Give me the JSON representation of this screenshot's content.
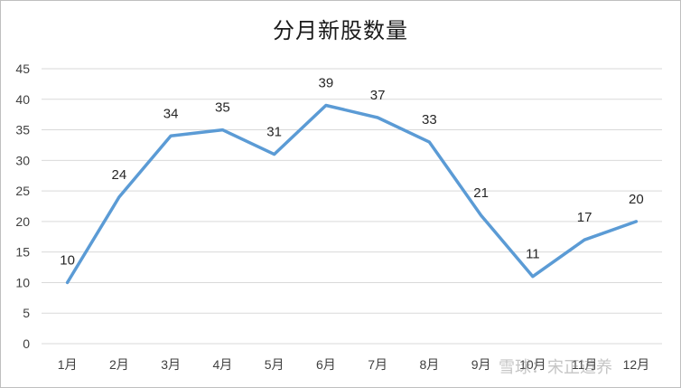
{
  "chart_data": {
    "type": "line",
    "title": "分月新股数量",
    "categories": [
      "1月",
      "2月",
      "3月",
      "4月",
      "5月",
      "6月",
      "7月",
      "8月",
      "9月",
      "10月",
      "11月",
      "12月"
    ],
    "series": [
      {
        "values": [
          10,
          24,
          34,
          35,
          31,
          39,
          37,
          33,
          21,
          11,
          17,
          20
        ]
      }
    ],
    "ylim": [
      0,
      45
    ],
    "yticks": [
      0,
      5,
      10,
      15,
      20,
      25,
      30,
      35,
      40,
      45
    ],
    "grid": true,
    "data_labels": true,
    "line_color": "#5b9bd5"
  },
  "watermark": "雪球：宋正道养"
}
